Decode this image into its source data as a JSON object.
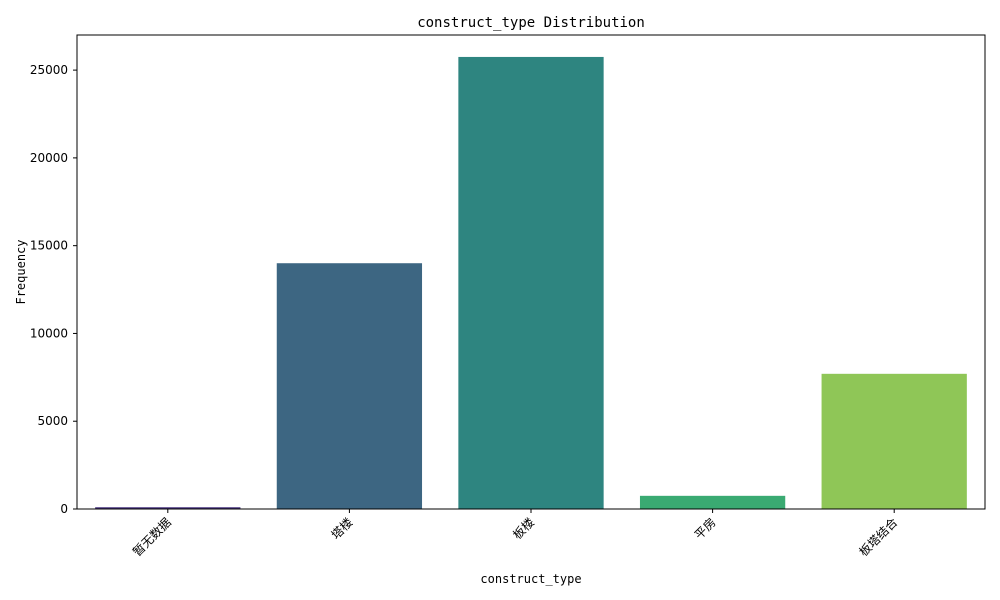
{
  "chart_data": {
    "type": "bar",
    "title": "construct_type Distribution",
    "xlabel": "construct_type",
    "ylabel": "Frequency",
    "categories": [
      "暂无数据",
      "塔楼",
      "板楼",
      "平房",
      "板塔结合"
    ],
    "values": [
      100,
      14000,
      25750,
      750,
      7700
    ],
    "ylim": [
      0,
      27000
    ],
    "yticks": [
      0,
      5000,
      10000,
      15000,
      20000,
      25000
    ],
    "colors": [
      "#46327e",
      "#3d6682",
      "#2e8580",
      "#3aaa72",
      "#8fc657"
    ],
    "grid": false,
    "legend": "none"
  }
}
